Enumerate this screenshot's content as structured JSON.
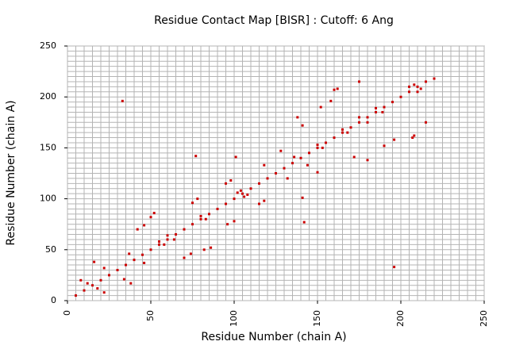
{
  "chart_data": {
    "type": "scatter",
    "title": "Residue Contact Map [BISR] : Cutoff: 6 Ang",
    "x_label": "Residue Number (chain A)",
    "y_label": "Residue Number (chain A)",
    "xlim": [
      0,
      250
    ],
    "ylim": [
      0,
      250
    ],
    "xticks": [
      0,
      50,
      100,
      150,
      200,
      250
    ],
    "yticks": [
      0,
      50,
      100,
      150,
      200,
      250
    ],
    "minor_ticks": [
      0,
      5,
      10,
      15,
      20,
      25,
      30,
      35,
      40,
      45,
      50,
      55,
      60,
      65,
      70,
      75,
      80,
      85,
      90,
      95,
      100,
      105,
      110,
      115,
      120,
      125,
      130,
      135,
      140,
      145,
      150,
      155,
      160,
      165,
      170,
      175,
      180,
      185,
      190,
      195,
      200,
      205,
      210,
      215,
      220,
      225,
      230,
      235,
      240,
      245,
      250
    ],
    "grid": true,
    "color": "#cc0000",
    "x": [
      5,
      10,
      15,
      20,
      25,
      30,
      35,
      40,
      45,
      50,
      55,
      60,
      65,
      70,
      75,
      80,
      85,
      90,
      95,
      100,
      105,
      110,
      115,
      120,
      125,
      130,
      135,
      140,
      145,
      150,
      155,
      160,
      165,
      170,
      175,
      180,
      185,
      190,
      195,
      200,
      205,
      210,
      215,
      220,
      55,
      58,
      60,
      64,
      80,
      83,
      104,
      108,
      106,
      102,
      175,
      180,
      185,
      189,
      205,
      210,
      212,
      208,
      165,
      168,
      150,
      153,
      8,
      12,
      18,
      22,
      16,
      22,
      34,
      38,
      37,
      46,
      42,
      46,
      50,
      52,
      70,
      74,
      82,
      86,
      75,
      78,
      96,
      100,
      95,
      98,
      115,
      118,
      33,
      196,
      77,
      142,
      118,
      132,
      128,
      136,
      144,
      150,
      141,
      101,
      138,
      141,
      180,
      172,
      152,
      158,
      190,
      196,
      160,
      207,
      175,
      215,
      208,
      162
    ],
    "y": [
      5,
      10,
      15,
      20,
      25,
      30,
      35,
      40,
      45,
      50,
      55,
      60,
      65,
      70,
      75,
      80,
      85,
      90,
      95,
      100,
      105,
      110,
      115,
      120,
      125,
      130,
      135,
      140,
      145,
      150,
      155,
      160,
      165,
      170,
      175,
      180,
      185,
      190,
      195,
      200,
      205,
      210,
      215,
      218,
      58,
      55,
      64,
      60,
      83,
      80,
      108,
      104,
      102,
      106,
      180,
      175,
      189,
      185,
      210,
      205,
      208,
      212,
      168,
      165,
      153,
      150,
      20,
      17,
      12,
      8,
      38,
      32,
      21,
      17,
      46,
      37,
      70,
      74,
      82,
      86,
      42,
      46,
      50,
      52,
      96,
      100,
      75,
      78,
      115,
      118,
      95,
      98,
      196,
      33,
      142,
      77,
      133,
      120,
      147,
      141,
      133,
      126,
      101,
      141,
      180,
      172,
      138,
      141,
      190,
      196,
      152,
      158,
      207,
      160,
      215,
      175,
      162,
      208
    ]
  }
}
